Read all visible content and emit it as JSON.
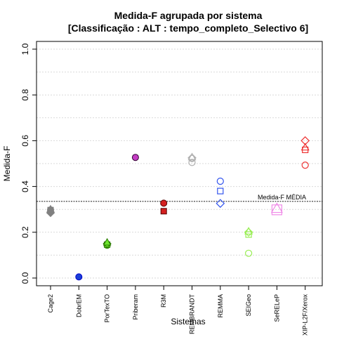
{
  "chart_data": {
    "type": "scatter",
    "title": "Medida-F agrupada por sistema",
    "subtitle": "[Classificação : ALT : tempo_completo_Selectivo 6]",
    "xlabel": "Sistemas",
    "ylabel": "Medida-F",
    "ylim": [
      0.0,
      1.0
    ],
    "yticks": [
      "0.0",
      "0.2",
      "0.4",
      "0.6",
      "0.8",
      "1.0"
    ],
    "grid": true,
    "categories": [
      "Cage2",
      "DobrEM",
      "PorTexTO",
      "Priberam",
      "R3M",
      "REMBRANDT",
      "REMMA",
      "SEIGeo",
      "SeRELeP",
      "XIP-L2F/Xerox"
    ],
    "reference_line": {
      "value": 0.335,
      "label": "Medida-F MÉDIA"
    },
    "series": [
      {
        "category": "Cage2",
        "color": "#808080",
        "fill": "#808080",
        "points": [
          {
            "shape": "circle",
            "value": 0.298
          },
          {
            "shape": "square",
            "value": 0.297
          },
          {
            "shape": "diamond",
            "value": 0.285
          },
          {
            "shape": "triangle",
            "value": 0.3
          }
        ]
      },
      {
        "category": "DobrEM",
        "color": "#0000cc",
        "fill": "#1a3fd6",
        "points": [
          {
            "shape": "circle",
            "value": 0.005
          }
        ]
      },
      {
        "category": "PorTexTO",
        "color": "#2a7a00",
        "fill": "#6ee62e",
        "points": [
          {
            "shape": "circle",
            "value": 0.143
          },
          {
            "shape": "square",
            "value": 0.146
          },
          {
            "shape": "diamond",
            "value": 0.15
          },
          {
            "shape": "triangle",
            "value": 0.155
          }
        ]
      },
      {
        "category": "Priberam",
        "color": "#330033",
        "fill": "#c33cc3",
        "points": [
          {
            "shape": "circle",
            "value": 0.527
          }
        ]
      },
      {
        "category": "R3M",
        "color": "#550000",
        "fill": "#d42020",
        "points": [
          {
            "shape": "circle",
            "value": 0.327
          },
          {
            "shape": "square",
            "value": 0.292
          }
        ]
      },
      {
        "category": "REMBRANDT",
        "color": "#b0b0b0",
        "fill": "none",
        "points": [
          {
            "shape": "circle",
            "value": 0.505
          },
          {
            "shape": "circle",
            "value": 0.522
          },
          {
            "shape": "diamond",
            "value": 0.525
          },
          {
            "shape": "triangle",
            "value": 0.527
          }
        ]
      },
      {
        "category": "REMMA",
        "color": "#3355ee",
        "fill": "none",
        "points": [
          {
            "shape": "circle",
            "value": 0.423
          },
          {
            "shape": "square",
            "value": 0.38
          },
          {
            "shape": "diamond",
            "value": 0.326
          }
        ]
      },
      {
        "category": "SEIGeo",
        "color": "#99ee55",
        "fill": "none",
        "points": [
          {
            "shape": "circle",
            "value": 0.108
          },
          {
            "shape": "square",
            "value": 0.19
          },
          {
            "shape": "diamond",
            "value": 0.2
          },
          {
            "shape": "triangle",
            "value": 0.203
          }
        ]
      },
      {
        "category": "SeRELeP",
        "color": "#f08ce8",
        "fill": "none",
        "points": [
          {
            "shape": "square-large",
            "value": 0.298
          },
          {
            "shape": "triangle-large",
            "value": 0.302
          }
        ]
      },
      {
        "category": "XIP-L2F/Xerox",
        "color": "#ee3333",
        "fill": "none",
        "points": [
          {
            "shape": "circle",
            "value": 0.493
          },
          {
            "shape": "diamond",
            "value": 0.6
          },
          {
            "shape": "square",
            "value": 0.56
          },
          {
            "shape": "triangle",
            "value": 0.57
          }
        ]
      }
    ]
  }
}
